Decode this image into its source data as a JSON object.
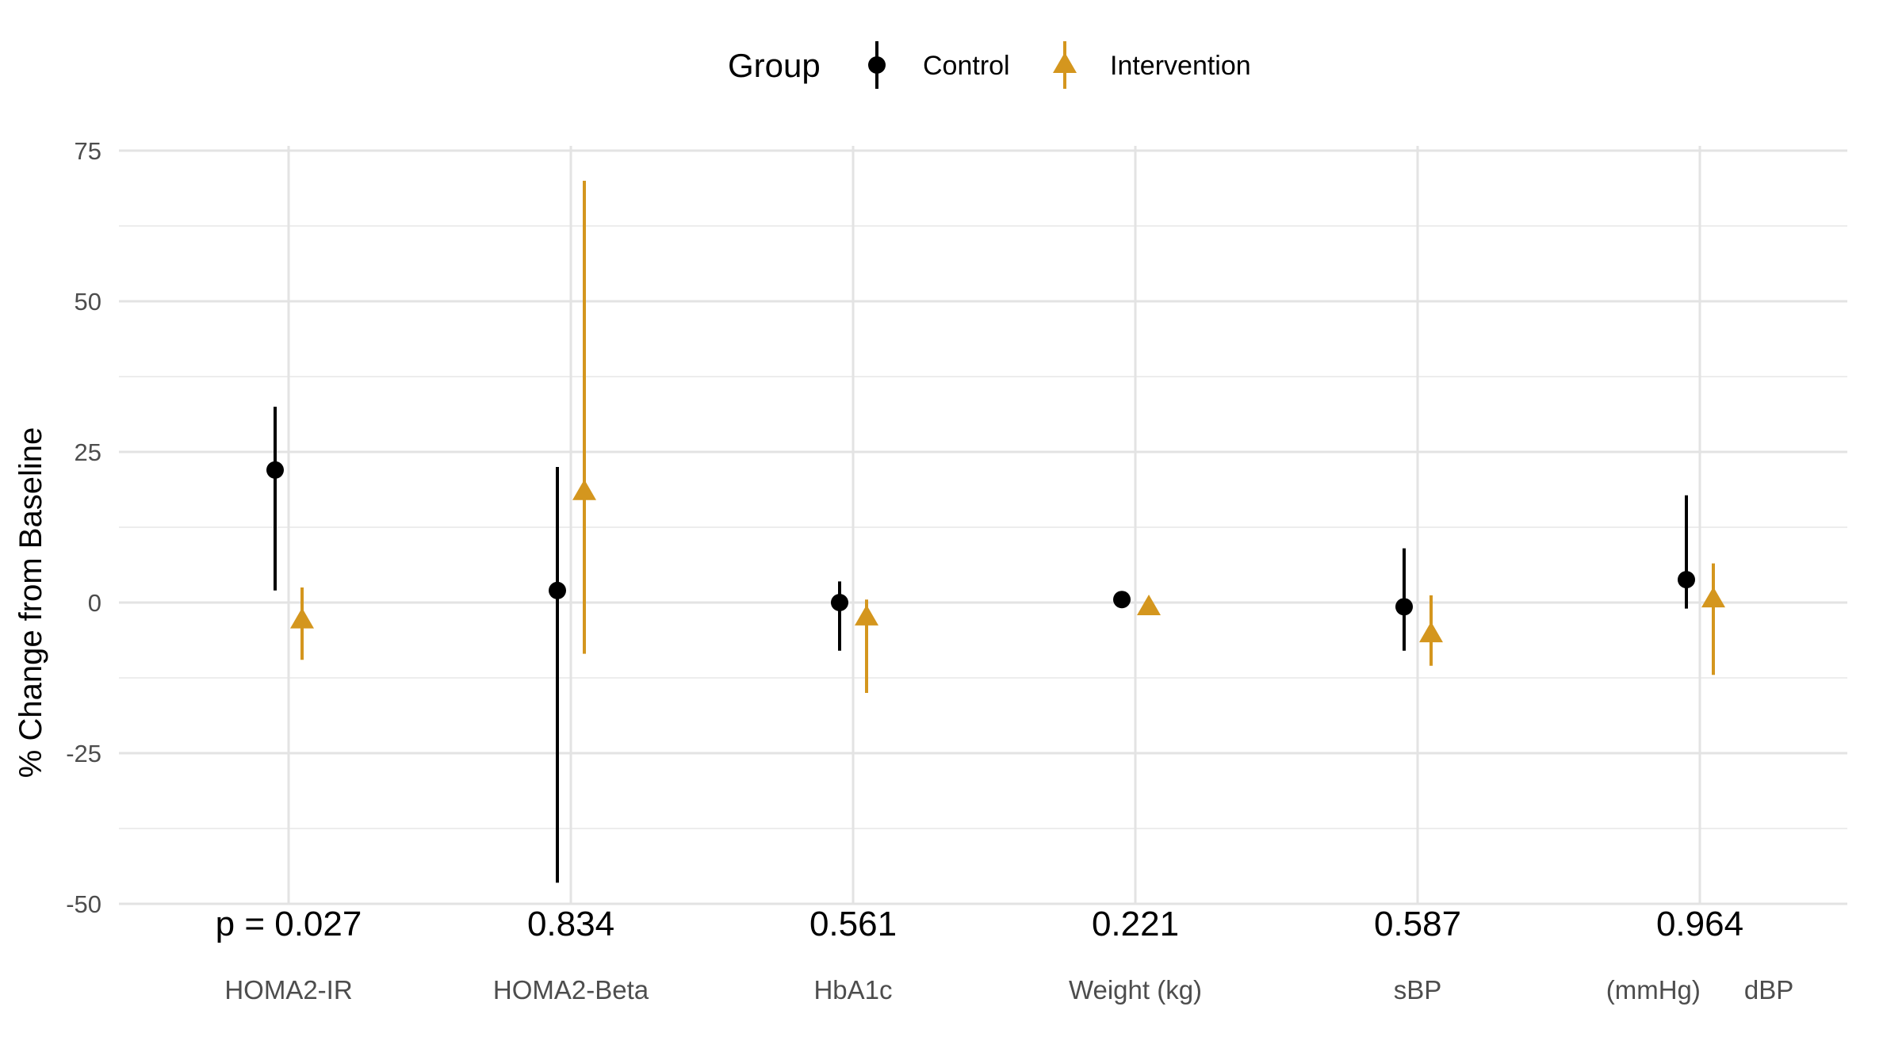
{
  "chart_data": {
    "type": "scatter",
    "ylabel": "% Change from Baseline",
    "ylim": [
      -50,
      75
    ],
    "y_ticks": [
      -50,
      -25,
      0,
      25,
      50,
      75
    ],
    "y_tick_labels": [
      "-50",
      "-25",
      "0",
      "25",
      "50",
      "75"
    ],
    "categories": [
      "HOMA2-IR",
      "HOMA2-Beta",
      "HbA1c",
      "Weight (kg)",
      "sBP",
      "dBP"
    ],
    "category_labels": [
      "HOMA2-IR",
      "HOMA2-Beta",
      "HbA1c",
      "Weight (kg)",
      "sBP",
      "(mmHg)      dBP"
    ],
    "p_values": [
      "p = 0.027",
      "0.834",
      "0.561",
      "0.221",
      "0.587",
      "0.964"
    ],
    "grid": true,
    "legend": {
      "title": "Group",
      "placement": "top"
    },
    "series": [
      {
        "name": "Control",
        "color": "#000000",
        "marker": "circle",
        "values": [
          22,
          2,
          0,
          0.5,
          -0.7,
          3.8
        ],
        "lower": [
          2,
          -46.5,
          -8,
          0,
          -8,
          -1
        ],
        "upper": [
          32.5,
          22.5,
          3.5,
          1,
          9,
          17.8
        ]
      },
      {
        "name": "Intervention",
        "color": "#D4961E",
        "marker": "triangle",
        "values": [
          -3,
          18.3,
          -2.5,
          -0.8,
          -5.3,
          0.5
        ],
        "lower": [
          -9.5,
          -8.5,
          -15,
          -2,
          -10.5,
          -12
        ],
        "upper": [
          2.5,
          70,
          0.5,
          -0.5,
          1.2,
          6.5
        ]
      }
    ]
  }
}
